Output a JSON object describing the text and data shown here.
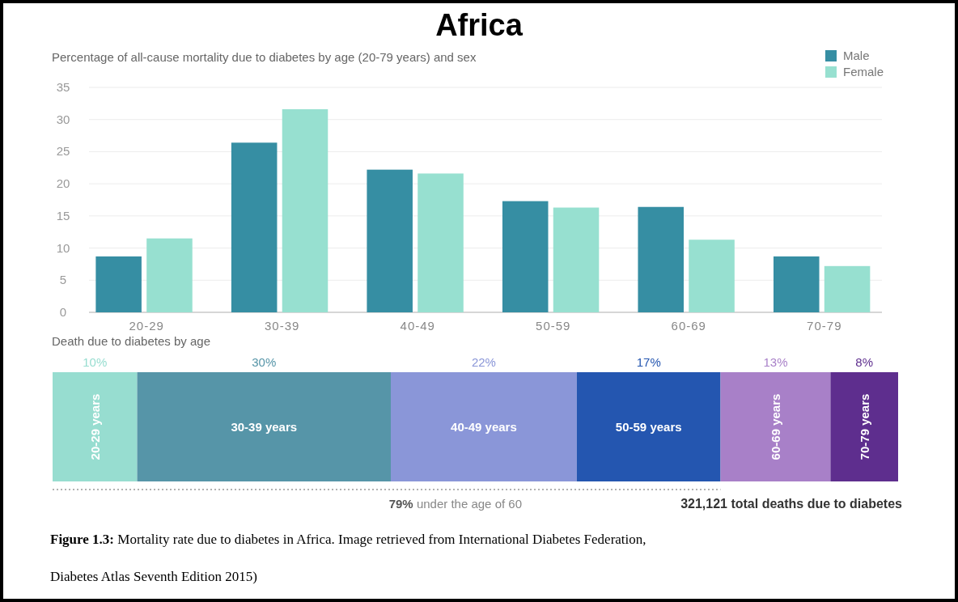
{
  "chart_data": [
    {
      "type": "bar",
      "title": "Africa",
      "subtitle": "Percentage of all-cause mortality due to diabetes by age (20-79 years) and sex",
      "categories": [
        "20-29",
        "30-39",
        "40-49",
        "50-59",
        "60-69",
        "70-79"
      ],
      "series": [
        {
          "name": "Male",
          "color": "#368ea3",
          "values": [
            8.7,
            26.4,
            22.2,
            17.3,
            16.4,
            8.7
          ]
        },
        {
          "name": "Female",
          "color": "#97e0d0",
          "values": [
            11.5,
            31.6,
            21.6,
            16.3,
            11.3,
            7.2
          ]
        }
      ],
      "ylim": [
        0,
        35
      ],
      "yticks": [
        0,
        5,
        10,
        15,
        20,
        25,
        30,
        35
      ],
      "grid": "y",
      "legend": "top right"
    },
    {
      "type": "bar",
      "orientation": "horizontal",
      "stacked": true,
      "title": "Death due to diabetes by age",
      "categories": [
        null
      ],
      "series": [
        {
          "name": "20-29 years",
          "color": "#97ddd0",
          "values": [
            10
          ],
          "value_labels": [
            "10%"
          ]
        },
        {
          "name": "30-39 years",
          "color": "#5695a8",
          "values": [
            30
          ],
          "value_labels": [
            "30%"
          ]
        },
        {
          "name": "40-49 years",
          "color": "#8a96d8",
          "values": [
            22
          ],
          "value_labels": [
            "22%"
          ]
        },
        {
          "name": "50-59 years",
          "color": "#2456b0",
          "values": [
            17
          ],
          "value_labels": [
            "17%"
          ]
        },
        {
          "name": "60-69 years",
          "color": "#a880c8",
          "values": [
            13
          ],
          "value_labels": [
            "13%"
          ]
        },
        {
          "name": "70-79 years",
          "color": "#5e2e8e",
          "values": [
            8
          ],
          "value_labels": [
            "8%"
          ]
        }
      ],
      "legend": false,
      "annotations": [
        "79% under the age of 60",
        "321,121 total deaths due to diabetes",
        "Figure 1.3: Mortality rate due to diabetes in Africa. Image retrieved from International Diabetes Federation, Diabetes Atlas Seventh Edition 2015)"
      ]
    }
  ]
}
